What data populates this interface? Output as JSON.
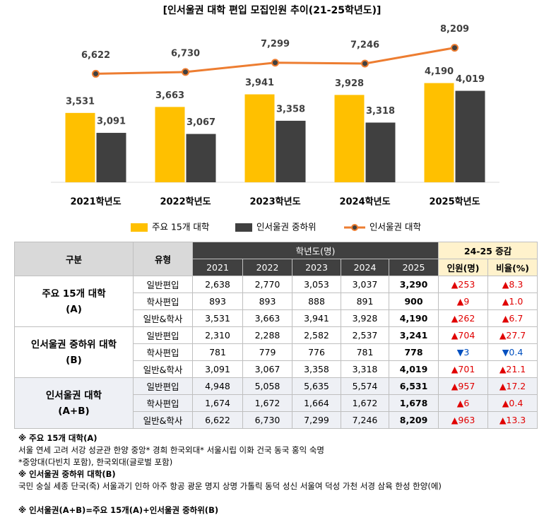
{
  "chart_data": {
    "type": "bar",
    "title": "[인서울권 대학 편입 모집인원 추이(21-25학년도)]",
    "categories": [
      "2021학년도",
      "2022학년도",
      "2023학년도",
      "2024학년도",
      "2025학년도"
    ],
    "ylim": [
      2000,
      5400
    ],
    "y2lim": [
      0,
      9400
    ],
    "legend": "bottom",
    "series": [
      {
        "name": "주요 15개 대학",
        "type": "bar",
        "color": "#ffc000",
        "values": [
          3531,
          3663,
          3941,
          3928,
          4190
        ],
        "value_labels": [
          "3,531",
          "3,663",
          "3,941",
          "3,928",
          "4,190"
        ]
      },
      {
        "name": "인서울권 중하위",
        "type": "bar",
        "color": "#404040",
        "values": [
          3091,
          3067,
          3358,
          3318,
          4019
        ],
        "value_labels": [
          "3,091",
          "3,067",
          "3,358",
          "3,318",
          "4,019"
        ]
      },
      {
        "name": "인서울권 대학",
        "type": "line",
        "axis": "y2",
        "color": "#ed7d31",
        "values": [
          6622,
          6730,
          7299,
          7246,
          8209
        ],
        "value_labels": [
          "6,622",
          "6,730",
          "7,299",
          "7,246",
          "8,209"
        ]
      }
    ]
  },
  "table": {
    "header": {
      "group": "구분",
      "type": "유형",
      "years": "학년도(명)",
      "change": "24-25 증감"
    },
    "subheader": [
      "2021",
      "2022",
      "2023",
      "2024",
      "2025",
      "인원(명)",
      "비율(%)"
    ],
    "groups": [
      {
        "name": [
          "주요 15개 대학",
          "(A)"
        ],
        "rows": [
          {
            "type": "일반편입",
            "values": [
              "2,638",
              "2,770",
              "3,053",
              "3,037",
              "3,290"
            ],
            "change": [
              "▲253",
              "▲8.3"
            ]
          },
          {
            "type": "학사편입",
            "values": [
              "893",
              "893",
              "888",
              "891",
              "900"
            ],
            "change": [
              "▲9",
              "▲1.0"
            ]
          },
          {
            "type": "일반&학사",
            "values": [
              "3,531",
              "3,663",
              "3,941",
              "3,928",
              "4,190"
            ],
            "change": [
              "▲262",
              "▲6.7"
            ]
          }
        ]
      },
      {
        "name": [
          "인서울권 중하위 대학",
          "(B)"
        ],
        "rows": [
          {
            "type": "일반편입",
            "values": [
              "2,310",
              "2,288",
              "2,582",
              "2,537",
              "3,241"
            ],
            "change": [
              "▲704",
              "▲27.7"
            ]
          },
          {
            "type": "학사편입",
            "values": [
              "781",
              "779",
              "776",
              "781",
              "778"
            ],
            "change": [
              "▼3",
              "▼0.4"
            ]
          },
          {
            "type": "일반&학사",
            "values": [
              "3,091",
              "3,067",
              "3,358",
              "3,318",
              "4,019"
            ],
            "change": [
              "▲701",
              "▲21.1"
            ]
          }
        ]
      },
      {
        "name": [
          "인서울권 대학",
          "(A+B)"
        ],
        "rows": [
          {
            "type": "일반편입",
            "values": [
              "4,948",
              "5,058",
              "5,635",
              "5,574",
              "6,531"
            ],
            "change": [
              "▲957",
              "▲17.2"
            ]
          },
          {
            "type": "학사편입",
            "values": [
              "1,674",
              "1,672",
              "1,664",
              "1,672",
              "1,678"
            ],
            "change": [
              "▲6",
              "▲0.4"
            ]
          },
          {
            "type": "일반&학사",
            "values": [
              "6,622",
              "6,730",
              "7,299",
              "7,246",
              "8,209"
            ],
            "change": [
              "▲963",
              "▲13.3"
            ]
          }
        ]
      }
    ]
  },
  "notes": [
    {
      "text": "※ 주요 15개 대학(A)",
      "bold": true
    },
    {
      "text": "서울 연세 고려 서강 성균관 한양 중앙* 경희 한국외대* 서울시립 이화 건국 동국 홍익 숙명",
      "bold": false
    },
    {
      "text": "*중앙대(다빈치 포함), 한국외대(글로벌 포함)",
      "bold": false
    },
    {
      "text": "※ 인서울권 중하위 대학(B)",
      "bold": true
    },
    {
      "text": "국민 숭실 세종 단국(죽) 서울과기 인하 아주 항공 광운 명지 상명 가톨릭 동덕 성신 서울여 덕성 가천 서경 삼육 한성 한양(에)",
      "bold": false
    },
    {
      "text": "※ 인서울권(A+B)=주요 15개(A)+인서울권 중하위(B)",
      "bold": true
    }
  ]
}
